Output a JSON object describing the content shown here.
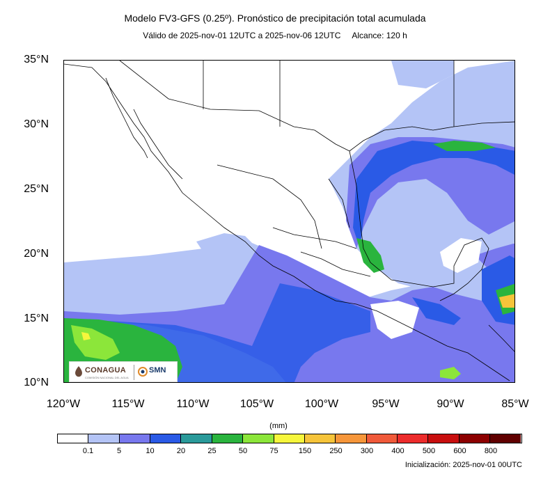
{
  "title": "Modelo FV3-GFS (0.25º). Pronóstico de precipitación total acumulada",
  "subtitle_valid": "Válido de 2025-nov-01 12UTC a 2025-nov-06 12UTC",
  "subtitle_range": "Alcance: 120 h",
  "lat_labels": [
    "35°N",
    "30°N",
    "25°N",
    "20°N",
    "15°N",
    "10°N"
  ],
  "lon_labels": [
    "120°W",
    "115°W",
    "110°W",
    "105°W",
    "100°W",
    "95°W",
    "90°W",
    "85°W"
  ],
  "logos": {
    "conagua": "CONAGUA",
    "conagua_sub": "COMISIÓN NACIONAL DEL AGUA",
    "smn": "SMN"
  },
  "colorbar": {
    "unit": "(mm)",
    "colors": [
      "#ffffff",
      "#b4c4f6",
      "#7878ee",
      "#2a5ae6",
      "#2a9a9a",
      "#2ab43e",
      "#8ce63a",
      "#f6f63c",
      "#f6c43a",
      "#f6963a",
      "#f05a3a",
      "#ec2c2c",
      "#c80e0e",
      "#8c0000",
      "#600000"
    ],
    "ticks": [
      "0.1",
      "5",
      "10",
      "20",
      "25",
      "50",
      "75",
      "150",
      "250",
      "300",
      "400",
      "500",
      "600",
      "800"
    ]
  },
  "init_label": "Inicialización: 2025-nov-01 00UTC"
}
